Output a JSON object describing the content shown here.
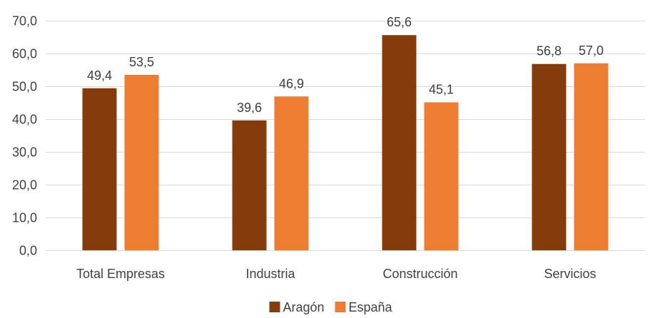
{
  "chart_data": {
    "type": "bar",
    "title": "",
    "xlabel": "",
    "ylabel": "",
    "categories": [
      "Total Empresas",
      "Industria",
      "Construcción",
      "Servicios"
    ],
    "series": [
      {
        "name": "Aragón",
        "color": "#843C0C",
        "values": [
          49.4,
          39.6,
          65.6,
          56.8
        ],
        "labels": [
          "49,4",
          "39,6",
          "65,6",
          "56,8"
        ]
      },
      {
        "name": "España",
        "color": "#ED7D31",
        "values": [
          53.5,
          46.9,
          45.1,
          57.0
        ],
        "labels": [
          "53,5",
          "46,9",
          "45,1",
          "57,0"
        ]
      }
    ],
    "ylim": [
      0,
      70
    ],
    "yticks": [
      0,
      10,
      20,
      30,
      40,
      50,
      60,
      70
    ],
    "ytick_labels": [
      "0,0",
      "10,0",
      "20,0",
      "30,0",
      "40,0",
      "50,0",
      "60,0",
      "70,0"
    ],
    "grid": true,
    "legend": "bottom"
  }
}
